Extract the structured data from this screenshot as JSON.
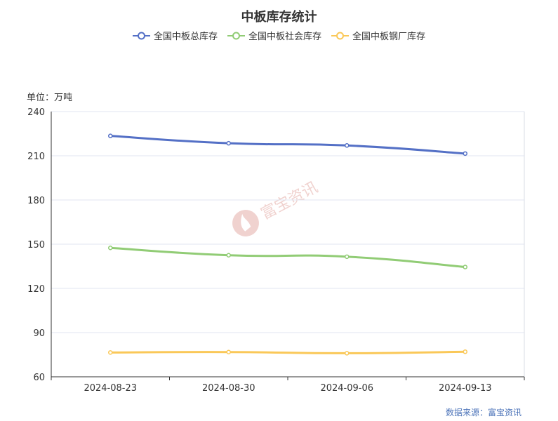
{
  "chart_data": {
    "type": "line",
    "title": "中板库存统计",
    "ylabel": "单位：万吨",
    "categories": [
      "2024-08-23",
      "2024-08-30",
      "2024-09-06",
      "2024-09-13"
    ],
    "ylim": [
      60,
      240
    ],
    "yticks": [
      60,
      90,
      120,
      150,
      180,
      210,
      240
    ],
    "grid": true,
    "legend_position": "top-center",
    "series": [
      {
        "name": "全国中板总库存",
        "values": [
          223.5,
          218.5,
          217.0,
          211.5
        ],
        "color": "#5470c6"
      },
      {
        "name": "全国中板社会库存",
        "values": [
          147.5,
          142.5,
          141.5,
          134.5
        ],
        "color": "#91cc75"
      },
      {
        "name": "全国中板钢厂库存",
        "values": [
          76.5,
          76.8,
          76.0,
          77.0
        ],
        "color": "#fac858"
      }
    ],
    "source": "数据来源：富宝资讯",
    "watermark": "富宝资讯"
  }
}
